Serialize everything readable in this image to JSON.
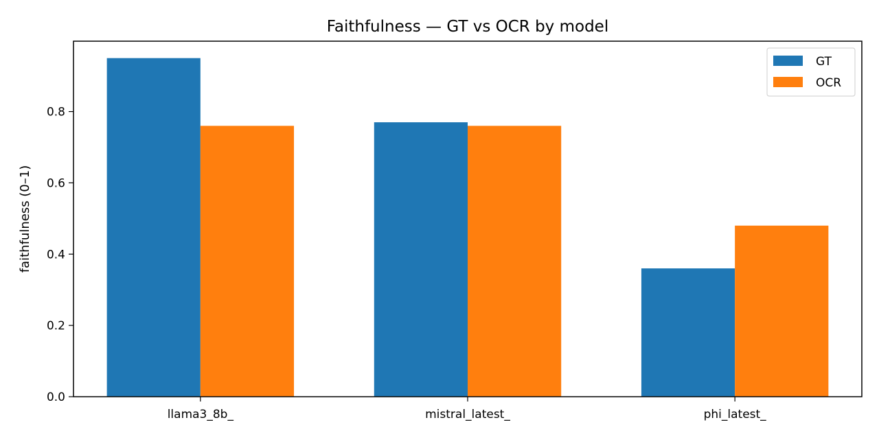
{
  "chart_data": {
    "type": "bar",
    "title": "Faithfulness — GT vs OCR by model",
    "xlabel": "",
    "ylabel": "faithfulness (0–1)",
    "categories": [
      "llama3_8b_",
      "mistral_latest_",
      "phi_latest_"
    ],
    "series": [
      {
        "name": "GT",
        "values": [
          0.95,
          0.77,
          0.36
        ],
        "color": "#1f77b4"
      },
      {
        "name": "OCR",
        "values": [
          0.76,
          0.76,
          0.48
        ],
        "color": "#ff7f0e"
      }
    ],
    "ylim": [
      0,
      0.9975
    ],
    "yticks": [
      0.0,
      0.2,
      0.4,
      0.6,
      0.8
    ],
    "ytick_labels": [
      "0.0",
      "0.2",
      "0.4",
      "0.6",
      "0.8"
    ],
    "grid": false,
    "legend_position": "top-right"
  }
}
